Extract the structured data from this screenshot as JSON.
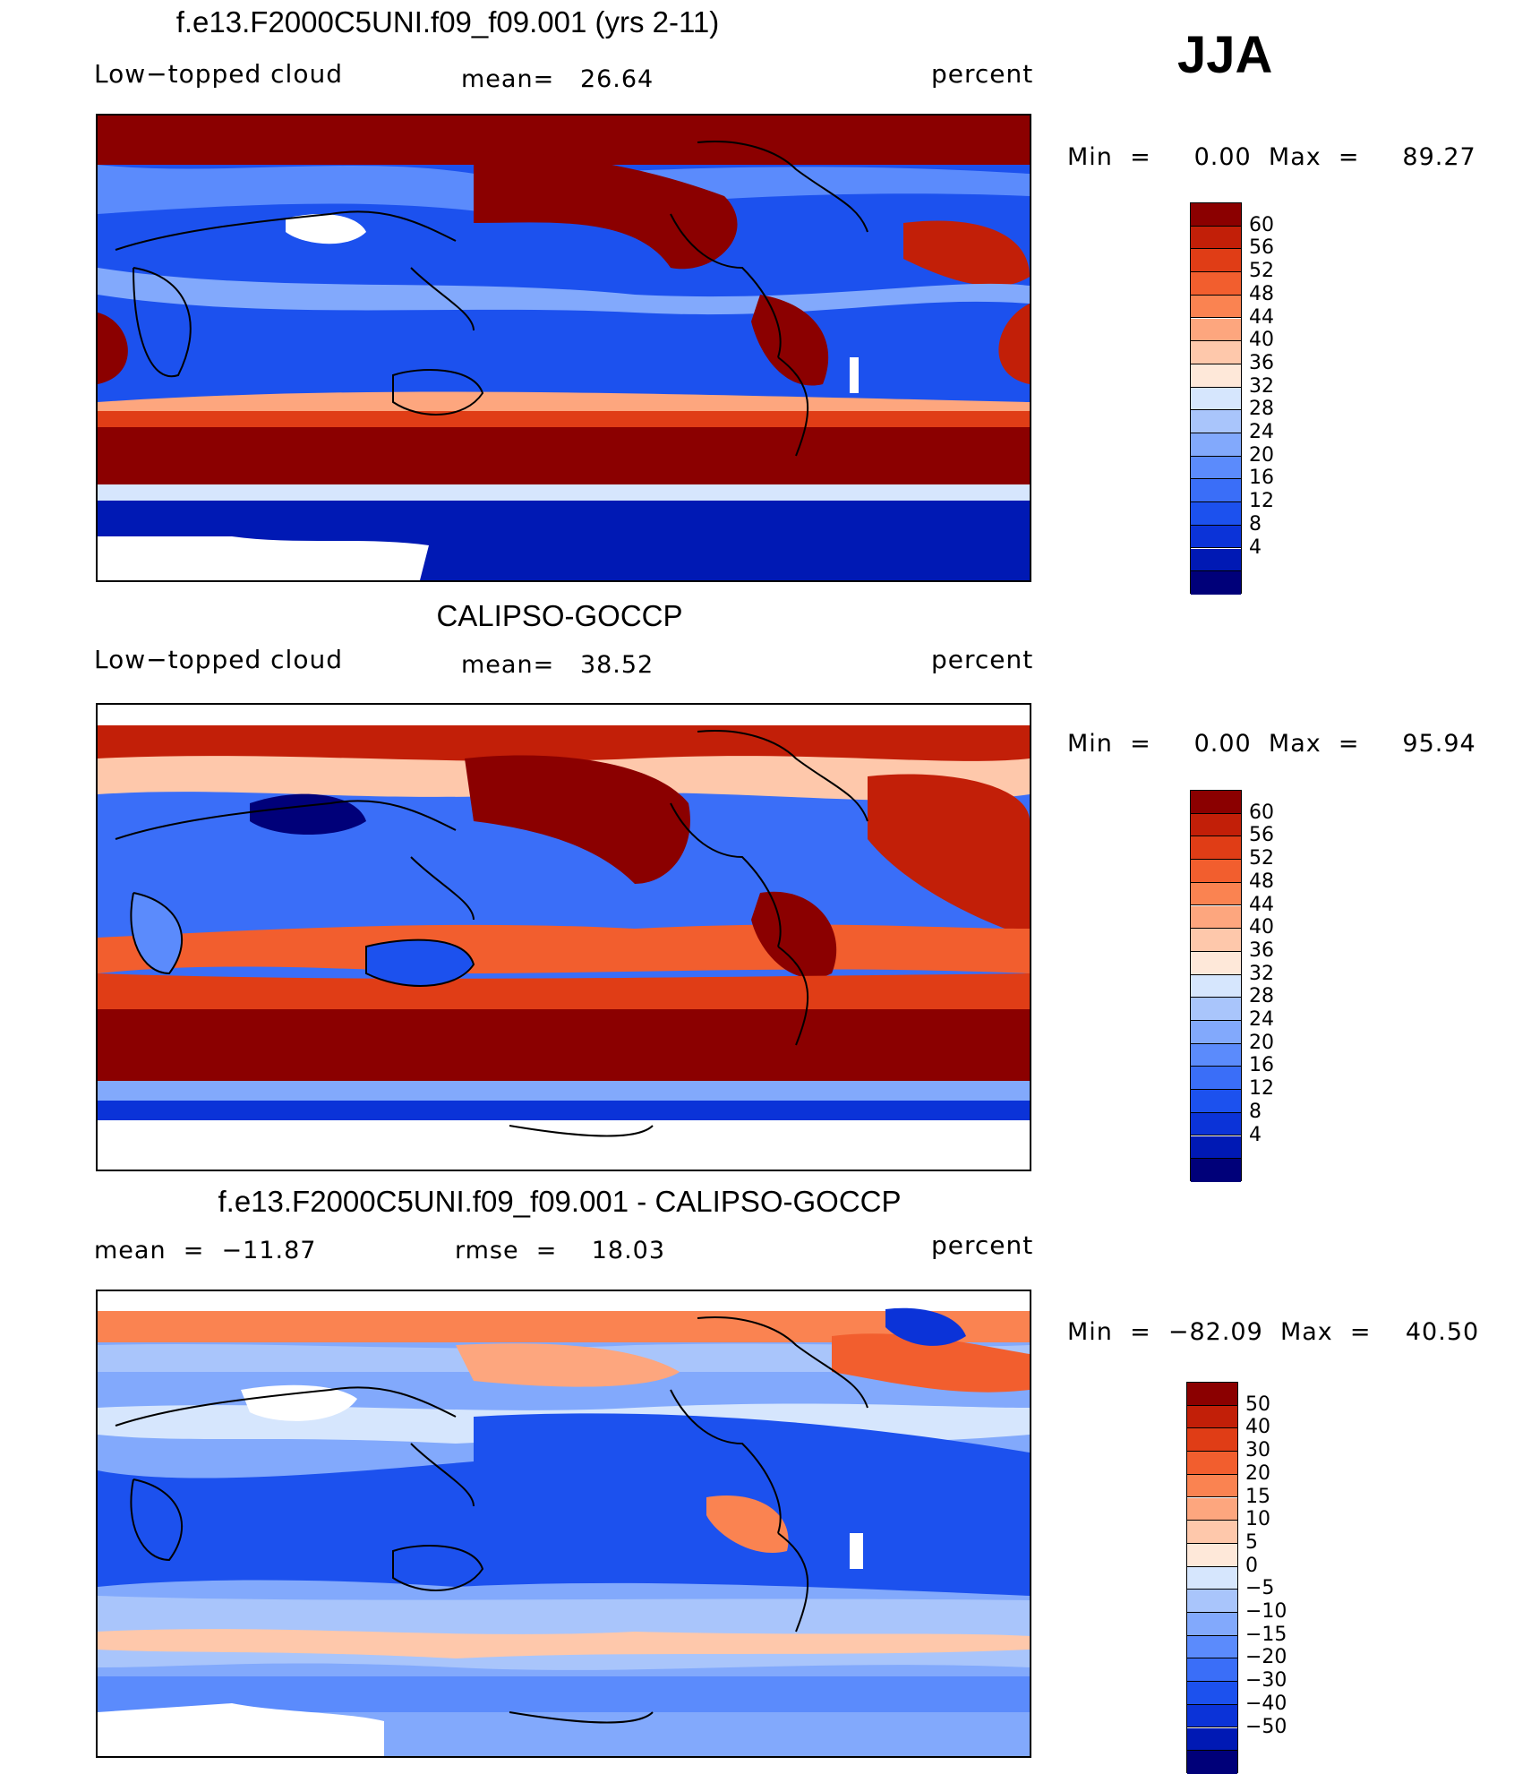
{
  "season": "JJA",
  "palettes": {
    "abs": [
      "#000079",
      "#0019b4",
      "#0b33d8",
      "#1c51ee",
      "#3a6ef8",
      "#5b8bfc",
      "#82a9fc",
      "#a9c5fb",
      "#d6e6fd",
      "#fee8d9",
      "#fec8ab",
      "#fda67e",
      "#fa8351",
      "#f25e2e",
      "#e03d16",
      "#c21f08",
      "#8b0000"
    ],
    "diff": [
      "#000079",
      "#0019b4",
      "#0b33d8",
      "#1c51ee",
      "#3a6ef8",
      "#5b8bfc",
      "#82a9fc",
      "#a9c5fb",
      "#d6e6fd",
      "#fee8d9",
      "#fec8ab",
      "#fda67e",
      "#fa8351",
      "#f25e2e",
      "#e03d16",
      "#c21f08",
      "#8b0000"
    ]
  },
  "panels": [
    {
      "title": "f.e13.F2000C5UNI.f09_f09.001 (yrs 2-11)",
      "left_label": "Low−topped cloud",
      "center_label": "mean=   26.64",
      "units": "percent",
      "minmax": "Min  =     0.00  Max  =     89.27",
      "levels": [
        "60",
        "56",
        "52",
        "48",
        "44",
        "40",
        "36",
        "32",
        "28",
        "24",
        "20",
        "16",
        "12",
        "8",
        "4"
      ],
      "palette": "abs"
    },
    {
      "title": "CALIPSO-GOCCP",
      "left_label": "Low−topped cloud",
      "center_label": "mean=   38.52",
      "units": "percent",
      "minmax": "Min  =     0.00  Max  =     95.94",
      "levels": [
        "60",
        "56",
        "52",
        "48",
        "44",
        "40",
        "36",
        "32",
        "28",
        "24",
        "20",
        "16",
        "12",
        "8",
        "4"
      ],
      "palette": "abs"
    },
    {
      "title": "f.e13.F2000C5UNI.f09_f09.001 - CALIPSO-GOCCP",
      "left_label": "mean  =  −11.87",
      "center_label": "rmse  =    18.03",
      "units": "percent",
      "minmax": "Min  =  −82.09  Max  =    40.50",
      "levels": [
        "50",
        "40",
        "30",
        "20",
        "15",
        "10",
        "5",
        "0",
        "−5",
        "−10",
        "−15",
        "−20",
        "−30",
        "−40",
        "−50"
      ],
      "palette": "diff"
    }
  ]
}
